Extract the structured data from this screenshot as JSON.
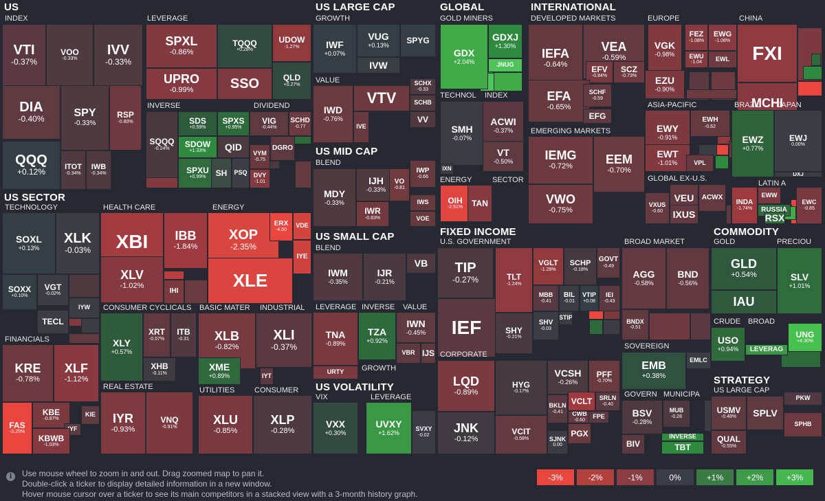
{
  "sections": [
    {
      "label": "US"
    },
    {
      "label": "US SECTOR"
    },
    {
      "label": "US LARGE CAP"
    },
    {
      "label": "US MID CAP"
    },
    {
      "label": "US SMALL CAP"
    },
    {
      "label": "US VOLATILITY"
    },
    {
      "label": "GLOBAL"
    },
    {
      "label": "INTERNATIONAL"
    },
    {
      "label": "FIXED INCOME"
    },
    {
      "label": "COMMODITY"
    },
    {
      "label": "STRATEGY"
    }
  ],
  "groups": [
    {
      "label": "INDEX"
    },
    {
      "label": "LEVERAGE"
    },
    {
      "label": "INVERSE"
    },
    {
      "label": "DIVIDEND"
    },
    {
      "label": "TECHNOLOGY"
    },
    {
      "label": "HEALTH CARE"
    },
    {
      "label": "ENERGY"
    },
    {
      "label": "FINANCIALS"
    },
    {
      "label": "CONSUMER CYCLICALS"
    },
    {
      "label": "BASIC MATER"
    },
    {
      "label": "INDUSTRIAL"
    },
    {
      "label": "REAL ESTATE"
    },
    {
      "label": "UTILITIES"
    },
    {
      "label": "CONSUMER"
    },
    {
      "label": "GROWTH"
    },
    {
      "label": "VALUE"
    },
    {
      "label": "BLEND"
    },
    {
      "label": "BLEND"
    },
    {
      "label": "LEVERAGE"
    },
    {
      "label": "INVERSE"
    },
    {
      "label": "VALUE"
    },
    {
      "label": "GROWTH"
    },
    {
      "label": "VIX"
    },
    {
      "label": "LEVERAGE"
    },
    {
      "label": "GOLD MINERS"
    },
    {
      "label": "TECHNOL"
    },
    {
      "label": "INDEX"
    },
    {
      "label": "ENERGY"
    },
    {
      "label": "SECTOR"
    },
    {
      "label": "DEVELOPED MARKETS"
    },
    {
      "label": "EUROPE"
    },
    {
      "label": "CHINA"
    },
    {
      "label": "ASIA-PACIFIC"
    },
    {
      "label": "EMERGING MARKETS"
    },
    {
      "label": "GLOBAL EX-U.S."
    },
    {
      "label": "BRAZIL"
    },
    {
      "label": "JAPAN"
    },
    {
      "label": "LATIN A"
    },
    {
      "label": "U.S. GOVERNMENT"
    },
    {
      "label": "BROAD MARKET"
    },
    {
      "label": "CORPORATE"
    },
    {
      "label": "SOVEREIGN"
    },
    {
      "label": "GOVERN"
    },
    {
      "label": "MUNICIPA"
    },
    {
      "label": "GOLD"
    },
    {
      "label": "PRECIOU"
    },
    {
      "label": "CRUDE"
    },
    {
      "label": "BROAD"
    },
    {
      "label": "US LARGE CAP"
    }
  ],
  "tiles": [
    {
      "t": "VTI",
      "p": "-0.37%",
      "c": "#5a3a40"
    },
    {
      "t": "VOO",
      "p": "-0.33%",
      "c": "#4f3a40"
    },
    {
      "t": "IVV",
      "p": "-0.33%",
      "c": "#4f3a40"
    },
    {
      "t": "DIA",
      "p": "-0.40%",
      "c": "#5c3a40"
    },
    {
      "t": "SPY",
      "p": "-0.33%",
      "c": "#4f3a40"
    },
    {
      "t": "RSP",
      "p": "-0.80%",
      "c": "#6e3a3f"
    },
    {
      "t": "QQQ",
      "p": "+0.12%",
      "c": "#343f45"
    },
    {
      "t": "ITOT",
      "p": "-0.34%",
      "c": "#4f3a40"
    },
    {
      "t": "IWB",
      "p": "-0.34%",
      "c": "#4f3a40"
    },
    {
      "t": "SPXL",
      "p": "-0.86%",
      "c": "#803a40"
    },
    {
      "t": "TQQQ",
      "p": "+0.28%",
      "c": "#334a40"
    },
    {
      "t": "UDOW",
      "p": "-1.27%",
      "c": "#903a3e"
    },
    {
      "t": "UPRO",
      "p": "-0.99%",
      "c": "#843a40"
    },
    {
      "t": "QLD",
      "p": "+0.27%",
      "c": "#334a40"
    },
    {
      "t": "SSO",
      "p": "",
      "c": "#7e3a40"
    },
    {
      "t": "SDS",
      "p": "+0.59%",
      "c": "#2f5b3c"
    },
    {
      "t": "SPXS",
      "p": "+0.95%",
      "c": "#2f6a3c"
    },
    {
      "t": "SQQQ",
      "p": "-0.24%",
      "c": "#4a3a40"
    },
    {
      "t": "SDOW",
      "p": "+1.33%",
      "c": "#2f8a40"
    },
    {
      "t": "QID",
      "p": "",
      "c": "#4b3a40"
    },
    {
      "t": "SPXU",
      "p": "+0.99%",
      "c": "#2f6b3c"
    },
    {
      "t": "SH",
      "p": "",
      "c": "#3b4a42"
    },
    {
      "t": "PSQ",
      "p": "",
      "c": "#3c3f45"
    },
    {
      "t": "VIG",
      "p": "-0.44%",
      "c": "#5c3a40"
    },
    {
      "t": "SCHD",
      "p": "-0.77",
      "c": "#6c3a3f"
    },
    {
      "t": "VYM",
      "p": "-0.75",
      "c": "#6a3a3f"
    },
    {
      "t": "DGRO",
      "p": "",
      "c": "#5e3a40"
    },
    {
      "t": "DVY",
      "p": "-1.01",
      "c": "#823a40"
    },
    {
      "t": "SOXL",
      "p": "+0.13%",
      "c": "#343f45"
    },
    {
      "t": "XLK",
      "p": "-0.03%",
      "c": "#3c3c44"
    },
    {
      "t": "VGT",
      "p": "-0.02%",
      "c": "#3c3c44"
    },
    {
      "t": "SOXX",
      "p": "+0.10%",
      "c": "#343f45"
    },
    {
      "t": "IYW",
      "p": "",
      "c": "#3c3c44"
    },
    {
      "t": "TECL",
      "p": "",
      "c": "#3c3c44"
    },
    {
      "t": "XBI",
      "p": "",
      "c": "#a23c40"
    },
    {
      "t": "IBB",
      "p": "-1.84%",
      "c": "#9e3a40"
    },
    {
      "t": "XLV",
      "p": "-1.02%",
      "c": "#843a40"
    },
    {
      "t": "IHI",
      "p": "",
      "c": "#7a3a40"
    },
    {
      "t": "XOP",
      "p": "-2.35%",
      "c": "#d9453f"
    },
    {
      "t": "ERX",
      "p": "-4.50",
      "c": "#e8463f"
    },
    {
      "t": "VDE",
      "p": "",
      "c": "#d4443f"
    },
    {
      "t": "IYE",
      "p": "",
      "c": "#cf433f"
    },
    {
      "t": "XLE",
      "p": "",
      "c": "#db453f"
    },
    {
      "t": "KRE",
      "p": "-0.78%",
      "c": "#6c3a3f"
    },
    {
      "t": "XLF",
      "p": "-1.12%",
      "c": "#883a40"
    },
    {
      "t": "FAS",
      "p": "-3.25%",
      "c": "#e8463f"
    },
    {
      "t": "KBE",
      "p": "-0.87%",
      "c": "#7a3a40"
    },
    {
      "t": "KIE",
      "p": "",
      "c": "#5c3a40"
    },
    {
      "t": "IYF",
      "p": "",
      "c": "#5c3a40"
    },
    {
      "t": "KBWB",
      "p": "-1.03%",
      "c": "#843a40"
    },
    {
      "t": "XLY",
      "p": "+0.57%",
      "c": "#2f5a3c"
    },
    {
      "t": "XRT",
      "p": "-0.57%",
      "c": "#613a40"
    },
    {
      "t": "ITB",
      "p": "-0.31",
      "c": "#503a40"
    },
    {
      "t": "XHB",
      "p": "-0.11%",
      "c": "#403a42"
    },
    {
      "t": "XLB",
      "p": "-0.82%",
      "c": "#773a40"
    },
    {
      "t": "XME",
      "p": "+0.89%",
      "c": "#2f693c"
    },
    {
      "t": "XLI",
      "p": "-0.37%",
      "c": "#5a3a40"
    },
    {
      "t": "IYT",
      "p": "",
      "c": "#5a3a40"
    },
    {
      "t": "IYR",
      "p": "-0.93%",
      "c": "#7e3a40"
    },
    {
      "t": "VNQ",
      "p": "-0.91%",
      "c": "#7c3a40"
    },
    {
      "t": "XLU",
      "p": "-0.85%",
      "c": "#783a40"
    },
    {
      "t": "XLP",
      "p": "-0.28%",
      "c": "#4d3a40"
    },
    {
      "t": "IWF",
      "p": "+0.07%",
      "c": "#363e45"
    },
    {
      "t": "VUG",
      "p": "+0.13%",
      "c": "#343f45"
    },
    {
      "t": "SPYG",
      "p": "",
      "c": "#363e45"
    },
    {
      "t": "IVW",
      "p": "",
      "c": "#3a3e45"
    },
    {
      "t": "IWD",
      "p": "-0.76%",
      "c": "#6a3a3f"
    },
    {
      "t": "VTV",
      "p": "",
      "c": "#6e3a3f"
    },
    {
      "t": "IVE",
      "p": "",
      "c": "#663a3f"
    },
    {
      "t": "SCHX",
      "p": "-0.33",
      "c": "#4f3a40"
    },
    {
      "t": "SCHB",
      "p": "",
      "c": "#4f3a40"
    },
    {
      "t": "VV",
      "p": "",
      "c": "#4f3a40"
    },
    {
      "t": "MDY",
      "p": "-0.33%",
      "c": "#4f3a40"
    },
    {
      "t": "IJH",
      "p": "-0.33%",
      "c": "#4f3a40"
    },
    {
      "t": "VO",
      "p": "-0.81",
      "c": "#703a3f"
    },
    {
      "t": "IWR",
      "p": "-0.83%",
      "c": "#723a3f"
    },
    {
      "t": "IWP",
      "p": "-0.66",
      "c": "#653a3f"
    },
    {
      "t": "IWS",
      "p": "",
      "c": "#653a3f"
    },
    {
      "t": "VOE",
      "p": "",
      "c": "#653a3f"
    },
    {
      "t": "IWM",
      "p": "-0.35%",
      "c": "#503a40"
    },
    {
      "t": "IJR",
      "p": "-0.21%",
      "c": "#483a40"
    },
    {
      "t": "VB",
      "p": "",
      "c": "#4d3a40"
    },
    {
      "t": "TNA",
      "p": "-0.89%",
      "c": "#7a3a40"
    },
    {
      "t": "TZA",
      "p": "+0.92%",
      "c": "#2f6a3c"
    },
    {
      "t": "IWN",
      "p": "-0.45%",
      "c": "#5c3a40"
    },
    {
      "t": "VBR",
      "p": "",
      "c": "#5c3a40"
    },
    {
      "t": "IJS",
      "p": "",
      "c": "#5c3a40"
    },
    {
      "t": "URTY",
      "p": "",
      "c": "#7a3a40"
    },
    {
      "t": "VXX",
      "p": "+0.30%",
      "c": "#334a40"
    },
    {
      "t": "UVXY",
      "p": "+1.62%",
      "c": "#3a9845"
    },
    {
      "t": "SVXY",
      "p": "-0.02",
      "c": "#3c3c44"
    },
    {
      "t": "GDX",
      "p": "+2.04%",
      "c": "#41ab49"
    },
    {
      "t": "GDXJ",
      "p": "+1.30%",
      "c": "#2f8a40"
    },
    {
      "t": "JNUG",
      "p": "",
      "c": "#4fc45a"
    },
    {
      "t": "SMH",
      "p": "-0.07%",
      "c": "#3c3c44"
    },
    {
      "t": "ACWI",
      "p": "-0.37%",
      "c": "#5a3a40"
    },
    {
      "t": "VT",
      "p": "-0.50%",
      "c": "#5e3a40"
    },
    {
      "t": "IXN",
      "p": "",
      "c": "#3c3c44"
    },
    {
      "t": "OIH",
      "p": "-2.51%",
      "c": "#e0443f"
    },
    {
      "t": "TAN",
      "p": "",
      "c": "#843a40"
    },
    {
      "t": "IEFA",
      "p": "-0.64%",
      "c": "#653a3f"
    },
    {
      "t": "VEA",
      "p": "-0.59%",
      "c": "#623a40"
    },
    {
      "t": "EFV",
      "p": "-0.84%",
      "c": "#773a40"
    },
    {
      "t": "SCZ",
      "p": "-0.73%",
      "c": "#6c3a3f"
    },
    {
      "t": "EFA",
      "p": "-0.65%",
      "c": "#663a3f"
    },
    {
      "t": "SCHF",
      "p": "-0.59",
      "c": "#623a40"
    },
    {
      "t": "EFG",
      "p": "",
      "c": "#5c3a40"
    },
    {
      "t": "VGK",
      "p": "-0.98%",
      "c": "#803a40"
    },
    {
      "t": "FEZ",
      "p": "-1.08%",
      "c": "#873a40"
    },
    {
      "t": "EWG",
      "p": "-1.08%",
      "c": "#873a40"
    },
    {
      "t": "EWU",
      "p": "-1.04",
      "c": "#853a40"
    },
    {
      "t": "EWL",
      "p": "",
      "c": "#6c3a3f"
    },
    {
      "t": "EZU",
      "p": "-0.90%",
      "c": "#7c3a40"
    },
    {
      "t": "FXI",
      "p": "",
      "c": "#8e3a40"
    },
    {
      "t": "MCHI",
      "p": "",
      "c": "#843a40"
    },
    {
      "t": "EWY",
      "p": "-0.91%",
      "c": "#7c3a40"
    },
    {
      "t": "EWH",
      "p": "-0.62",
      "c": "#643a3f"
    },
    {
      "t": "EWT",
      "p": "-1.01%",
      "c": "#823a40"
    },
    {
      "t": "VPL",
      "p": "",
      "c": "#643a3f"
    },
    {
      "t": "IEMG",
      "p": "-0.72%",
      "c": "#6c3a3f"
    },
    {
      "t": "EEM",
      "p": "-0.70%",
      "c": "#6a3a3f"
    },
    {
      "t": "VWO",
      "p": "-0.75%",
      "c": "#6e3a3f"
    },
    {
      "t": "VXUS",
      "p": "-0.60",
      "c": "#633a40"
    },
    {
      "t": "VEU",
      "p": "",
      "c": "#633a40"
    },
    {
      "t": "ACWX",
      "p": "",
      "c": "#633a40"
    },
    {
      "t": "IXUS",
      "p": "",
      "c": "#633a40"
    },
    {
      "t": "EWZ",
      "p": "+0.77%",
      "c": "#2f633c"
    },
    {
      "t": "EWJ",
      "p": "0.00%",
      "c": "#3c3c44"
    },
    {
      "t": "DXJ",
      "p": "",
      "c": "#3c3c44"
    },
    {
      "t": "INDA",
      "p": "-1.74%",
      "c": "#9c3a40"
    },
    {
      "t": "EWW",
      "p": "",
      "c": "#7a3a40"
    },
    {
      "t": "EWC",
      "p": "-0.85",
      "c": "#783a40"
    },
    {
      "t": "RUSSIA",
      "p": "",
      "c": "#2f6a3c"
    },
    {
      "t": "RSX",
      "p": "",
      "c": "#2f6a3c"
    },
    {
      "t": "TIP",
      "p": "-0.27%",
      "c": "#4d3a40"
    },
    {
      "t": "IEF",
      "p": "",
      "c": "#5a3a40"
    },
    {
      "t": "TLT",
      "p": "-1.24%",
      "c": "#8e3a40"
    },
    {
      "t": "VGLT",
      "p": "-1.28%",
      "c": "#903a3e"
    },
    {
      "t": "SCHP",
      "p": "-0.18%",
      "c": "#453a42"
    },
    {
      "t": "GOVT",
      "p": "-0.49",
      "c": "#5c3a40"
    },
    {
      "t": "MBB",
      "p": "-0.41",
      "c": "#593a40"
    },
    {
      "t": "BIL",
      "p": "-0.01",
      "c": "#3c3c44"
    },
    {
      "t": "VTIP",
      "p": "+0.08",
      "c": "#363e45"
    },
    {
      "t": "IEI",
      "p": "-0.43",
      "c": "#5a3a40"
    },
    {
      "t": "SHY",
      "p": "-0.21%",
      "c": "#483a40"
    },
    {
      "t": "SHV",
      "p": "-0.03",
      "c": "#3c3c44"
    },
    {
      "t": "STIP",
      "p": "",
      "c": "#3c3c44"
    },
    {
      "t": "AGG",
      "p": "-0.58%",
      "c": "#623a40"
    },
    {
      "t": "BND",
      "p": "-0.56%",
      "c": "#613a40"
    },
    {
      "t": "BNDX",
      "p": "-0.51",
      "c": "#5e3a40"
    },
    {
      "t": "LQD",
      "p": "-0.89%",
      "c": "#7a3a40"
    },
    {
      "t": "HYG",
      "p": "-0.17%",
      "c": "#453a42"
    },
    {
      "t": "VCSH",
      "p": "-0.26%",
      "c": "#4b3a40"
    },
    {
      "t": "PFF",
      "p": "-0.70%",
      "c": "#6a3a3f"
    },
    {
      "t": "JNK",
      "p": "-0.12%",
      "c": "#423a42"
    },
    {
      "t": "VCIT",
      "p": "-0.58%",
      "c": "#623a40"
    },
    {
      "t": "VCLT",
      "p": "",
      "c": "#a03a40"
    },
    {
      "t": "SRLN",
      "p": "-0.40",
      "c": "#583a40"
    },
    {
      "t": "BKLN",
      "p": "-0.41",
      "c": "#593a40"
    },
    {
      "t": "CWB",
      "p": "-0.60",
      "c": "#633a40"
    },
    {
      "t": "FPE",
      "p": "",
      "c": "#5a3a40"
    },
    {
      "t": "SJNK",
      "p": "0.00",
      "c": "#3c3c44"
    },
    {
      "t": "PGX",
      "p": "",
      "c": "#6a3a3f"
    },
    {
      "t": "EMB",
      "p": "+0.38%",
      "c": "#305040"
    },
    {
      "t": "EMLC",
      "p": "",
      "c": "#3a3e45"
    },
    {
      "t": "BSV",
      "p": "-0.28%",
      "c": "#4d3a40"
    },
    {
      "t": "BIV",
      "p": "",
      "c": "#5a3a40"
    },
    {
      "t": "MUB",
      "p": "-0.28",
      "c": "#4d3a40"
    },
    {
      "t": "INVERSE",
      "p": "",
      "c": "#2f8a40"
    },
    {
      "t": "TBT",
      "p": "",
      "c": "#2f8a40"
    },
    {
      "t": "GLD",
      "p": "+0.54%",
      "c": "#2f583c"
    },
    {
      "t": "SLV",
      "p": "+1.01%",
      "c": "#2f6c3c"
    },
    {
      "t": "IAU",
      "p": "",
      "c": "#2f583c"
    },
    {
      "t": "USO",
      "p": "+0.94%",
      "c": "#2f693c"
    },
    {
      "t": "UNG",
      "p": "+4.30%",
      "c": "#47c050"
    },
    {
      "t": "LEVERAG",
      "p": "",
      "c": "#3a9845"
    },
    {
      "t": "USMV",
      "p": "-0.48%",
      "c": "#5d3a40"
    },
    {
      "t": "SPLV",
      "p": "",
      "c": "#5c3a40"
    },
    {
      "t": "PKW",
      "p": "",
      "c": "#503a40"
    },
    {
      "t": "QUAL",
      "p": "-0.55%",
      "c": "#603a40"
    },
    {
      "t": "SPHB",
      "p": "",
      "c": "#6e3a3f"
    }
  ],
  "minis": [
    {
      "c": "#6a3a3f"
    },
    {
      "c": "#5a3a40"
    },
    {
      "c": "#803a40"
    },
    {
      "c": "#4a3a40"
    },
    {
      "c": "#633a40"
    },
    {
      "c": "#2f6a3c"
    },
    {
      "c": "#3c3c44"
    },
    {
      "c": "#4f3a40"
    },
    {
      "c": "#803a40"
    },
    {
      "c": "#3c3c44"
    },
    {
      "c": "#5e3a40"
    },
    {
      "c": "#843a40"
    },
    {
      "c": "#6a3a3f"
    },
    {
      "c": "#ba403f"
    },
    {
      "c": "#763a40"
    },
    {
      "c": "#4fc45a"
    },
    {
      "c": "#2f8a40"
    },
    {
      "c": "#41ab49"
    },
    {
      "c": "#e8463f"
    },
    {
      "c": "#7a3a40"
    },
    {
      "c": "#2f6a3c"
    },
    {
      "c": "#3c3c44"
    },
    {
      "c": "#e8463f"
    },
    {
      "c": "#2f8a40"
    },
    {
      "c": "#903a3e"
    },
    {
      "c": "#2f6a3c"
    },
    {
      "c": "#7c3a40"
    },
    {
      "c": "#2f8a40"
    },
    {
      "c": "#e8463f"
    },
    {
      "c": "#2f6a3c"
    },
    {
      "c": "#5a3a40"
    },
    {
      "c": "#6c3a3f"
    },
    {
      "c": "#5a3a40"
    },
    {
      "c": "#6c3a3f"
    },
    {
      "c": "#3c3c44"
    },
    {
      "c": "#5e3a40"
    },
    {
      "c": "#e8463f"
    },
    {
      "c": "#2f8a40"
    },
    {
      "c": "#e8463f"
    },
    {
      "c": "#7a3a40"
    },
    {
      "c": "#41ab49"
    },
    {
      "c": "#5c3a40"
    },
    {
      "c": "#5a3a40"
    },
    {
      "c": "#6e3a3f"
    },
    {
      "c": "#3c3c44"
    },
    {
      "c": "#2f6a3c"
    }
  ],
  "help": [
    "Use mouse wheel to zoom in and out. Drag zoomed map to pan it.",
    "Double-click a ticker to display detailed information in a new window.",
    "Hover mouse cursor over a ticker to see its main competitors in a stacked view with a 3-month history graph."
  ],
  "scale": [
    {
      "label": "-3%",
      "color": "#e8463f"
    },
    {
      "label": "-2%",
      "color": "#b2403f"
    },
    {
      "label": "-1%",
      "color": "#8a3e43"
    },
    {
      "label": "0%",
      "color": "#3a3e48"
    },
    {
      "label": "+1%",
      "color": "#3a7a45"
    },
    {
      "label": "+2%",
      "color": "#3f9a49"
    },
    {
      "label": "+3%",
      "color": "#47b550"
    }
  ]
}
